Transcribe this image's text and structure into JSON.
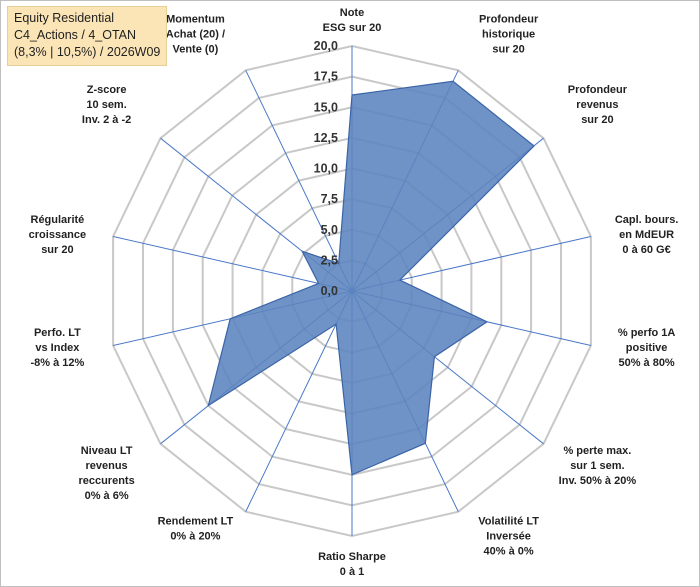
{
  "title": {
    "line1": "Equity Residential",
    "line2": "C4_Actions / 4_OTAN",
    "line3": "(8,3% | 10,5%) / 2026W09"
  },
  "chart_data": {
    "type": "radar",
    "axes": [
      [
        "Note",
        "ESG sur 20"
      ],
      [
        "Profondeur",
        "historique",
        "sur 20"
      ],
      [
        "Profondeur",
        "revenus",
        "sur 20"
      ],
      [
        "Capl. bours.",
        "en MdEUR",
        "0 à 60 G€"
      ],
      [
        "% perfo 1A",
        "positive",
        "50% à 80%"
      ],
      [
        "% perte max.",
        "sur 1 sem.",
        "Inv. 50% à 20%"
      ],
      [
        "Volatilité LT",
        "Inversée",
        "40% à 0%"
      ],
      [
        "Ratio Sharpe",
        "0 à 1"
      ],
      [
        "Rendement LT",
        "0% à 20%"
      ],
      [
        "Niveau LT",
        "revenus",
        "reccurents",
        "0% à 6%"
      ],
      [
        "Perfo. LT",
        "vs Index",
        "-8% à 12%"
      ],
      [
        "Régularité",
        "croissance",
        "sur 20"
      ],
      [
        "Z-score",
        "10 sem.",
        "Inv. 2 à -2"
      ],
      [
        "Momentum",
        "Achat (20) /",
        "Vente (0)"
      ]
    ],
    "ticks": [
      "0,0",
      "2,5",
      "5,0",
      "7,5",
      "10,0",
      "12,5",
      "15,0",
      "17,5",
      "20,0"
    ],
    "rmin": 0,
    "rmax": 20,
    "values": [
      16,
      19,
      19,
      4,
      11.3,
      8.6,
      13.8,
      15,
      3,
      15,
      10.2,
      2.8,
      5.2,
      2.5
    ],
    "grid": true,
    "colors": {
      "fill": "#5b84be",
      "stroke": "#3a64a8",
      "spoke": "#4a78c8",
      "grid": "#c8c8c8"
    }
  }
}
